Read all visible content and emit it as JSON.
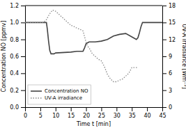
{
  "chart_data": {
    "type": "line",
    "xlabel": "Time t [min]",
    "ylabel": "Concentration NO [ppmv]",
    "y2label": "UV-A irradiance [Wm⁻²]",
    "xlim": [
      0,
      45
    ],
    "xticks": [
      0,
      5,
      10,
      15,
      20,
      25,
      30,
      35,
      40,
      45
    ],
    "ylim": [
      0,
      1.2
    ],
    "yticks": [
      {
        "value": 0,
        "label": "0.0"
      },
      0.2,
      0.4,
      0.6,
      0.8,
      {
        "value": 1.0,
        "label": "1.0"
      },
      1.2
    ],
    "y2lim": [
      0,
      18
    ],
    "y2ticks": [
      0,
      3,
      6,
      9,
      12,
      15,
      18
    ],
    "legend": "lower left",
    "series": [
      {
        "name": "Concentration NO",
        "color": "#444444",
        "line_style": "solid",
        "axis": "y",
        "x": [
          0,
          7.0,
          7.3,
          7.7,
          8.1,
          8.5,
          9.0,
          9.5,
          10.0,
          15.0,
          17.0,
          19.0,
          19.5,
          20.0,
          20.5,
          21.0,
          22.0,
          23.0,
          25.0,
          27.0,
          29.0,
          31.0,
          33.0,
          35.0,
          36.5,
          37.0,
          37.5,
          38.0,
          38.5,
          39.0,
          40.0,
          45.0
        ],
        "values": [
          1.0,
          1.0,
          0.92,
          0.78,
          0.67,
          0.63,
          0.63,
          0.63,
          0.64,
          0.65,
          0.66,
          0.66,
          0.7,
          0.75,
          0.76,
          0.77,
          0.77,
          0.77,
          0.78,
          0.8,
          0.84,
          0.86,
          0.87,
          0.83,
          0.8,
          0.82,
          0.88,
          0.95,
          1.0,
          1.0,
          1.0,
          1.0
        ]
      },
      {
        "name": "UV-A irradiance",
        "color": "#888888",
        "line_style": "dotted",
        "axis": "y2",
        "x": [
          0,
          4.0,
          6.0,
          7.0,
          8.0,
          9.0,
          10.0,
          11.0,
          12.0,
          13.0,
          14.0,
          15.0,
          16.0,
          17.0,
          18.0,
          19.0,
          19.5,
          20.0,
          20.5,
          21.0,
          22.0,
          23.0,
          24.0,
          25.0,
          26.0,
          27.0,
          28.0,
          29.0,
          30.0,
          31.0,
          32.0,
          33.0,
          34.0,
          35.0,
          36.0,
          37.0
        ],
        "values": [
          15,
          15,
          15,
          15.5,
          16.5,
          17.2,
          17.0,
          16.5,
          16.0,
          15.5,
          15.0,
          14.5,
          14.3,
          14.0,
          13.8,
          13.5,
          12.5,
          11.5,
          10.8,
          10.5,
          9.5,
          9.0,
          8.5,
          8.2,
          7.2,
          5.8,
          5.0,
          4.5,
          4.5,
          4.8,
          5.0,
          5.5,
          6.0,
          7.0,
          7.0,
          7.0
        ]
      }
    ]
  }
}
